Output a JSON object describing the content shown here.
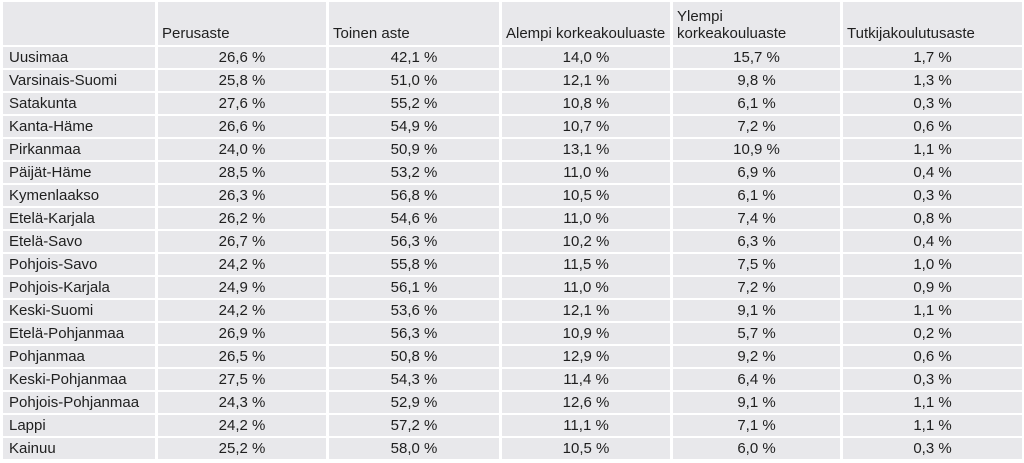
{
  "colors": {
    "cell_background": "#e8e8eb",
    "grid_gap": "#ffffff",
    "text": "#1f1f1f"
  },
  "chart_data": {
    "type": "table",
    "title": "",
    "columns": [
      "",
      "Perusaste",
      "Toinen aste",
      "Alempi korkeakouluaste",
      "Ylempi korkeakouluaste",
      "Tutkijakoulutusaste"
    ],
    "rows": [
      {
        "region": "Uusimaa",
        "values": [
          "26,6 %",
          "42,1 %",
          "14,0 %",
          "15,7 %",
          "1,7 %"
        ]
      },
      {
        "region": "Varsinais-Suomi",
        "values": [
          "25,8 %",
          "51,0 %",
          "12,1 %",
          "9,8 %",
          "1,3 %"
        ]
      },
      {
        "region": "Satakunta",
        "values": [
          "27,6 %",
          "55,2 %",
          "10,8 %",
          "6,1 %",
          "0,3 %"
        ]
      },
      {
        "region": "Kanta-Häme",
        "values": [
          "26,6 %",
          "54,9 %",
          "10,7 %",
          "7,2 %",
          "0,6 %"
        ]
      },
      {
        "region": "Pirkanmaa",
        "values": [
          "24,0 %",
          "50,9 %",
          "13,1 %",
          "10,9 %",
          "1,1 %"
        ]
      },
      {
        "region": "Päijät-Häme",
        "values": [
          "28,5 %",
          "53,2 %",
          "11,0 %",
          "6,9 %",
          "0,4 %"
        ]
      },
      {
        "region": "Kymenlaakso",
        "values": [
          "26,3 %",
          "56,8 %",
          "10,5 %",
          "6,1 %",
          "0,3 %"
        ]
      },
      {
        "region": "Etelä-Karjala",
        "values": [
          "26,2 %",
          "54,6 %",
          "11,0 %",
          "7,4 %",
          "0,8 %"
        ]
      },
      {
        "region": "Etelä-Savo",
        "values": [
          "26,7 %",
          "56,3 %",
          "10,2 %",
          "6,3 %",
          "0,4 %"
        ]
      },
      {
        "region": "Pohjois-Savo",
        "values": [
          "24,2 %",
          "55,8 %",
          "11,5 %",
          "7,5 %",
          "1,0 %"
        ]
      },
      {
        "region": "Pohjois-Karjala",
        "values": [
          "24,9 %",
          "56,1 %",
          "11,0 %",
          "7,2 %",
          "0,9 %"
        ]
      },
      {
        "region": "Keski-Suomi",
        "values": [
          "24,2 %",
          "53,6 %",
          "12,1 %",
          "9,1 %",
          "1,1 %"
        ]
      },
      {
        "region": "Etelä-Pohjanmaa",
        "values": [
          "26,9 %",
          "56,3 %",
          "10,9 %",
          "5,7 %",
          "0,2 %"
        ]
      },
      {
        "region": "Pohjanmaa",
        "values": [
          "26,5 %",
          "50,8 %",
          "12,9 %",
          "9,2 %",
          "0,6 %"
        ]
      },
      {
        "region": "Keski-Pohjanmaa",
        "values": [
          "27,5 %",
          "54,3 %",
          "11,4 %",
          "6,4 %",
          "0,3 %"
        ]
      },
      {
        "region": "Pohjois-Pohjanmaa",
        "values": [
          "24,3 %",
          "52,9 %",
          "12,6 %",
          "9,1 %",
          "1,1 %"
        ]
      },
      {
        "region": "Lappi",
        "values": [
          "24,2 %",
          "57,2 %",
          "11,1 %",
          "7,1 %",
          "1,1 %"
        ]
      },
      {
        "region": "Kainuu",
        "values": [
          "25,2 %",
          "58,0 %",
          "10,5 %",
          "6,0 %",
          "0,3 %"
        ]
      }
    ]
  }
}
